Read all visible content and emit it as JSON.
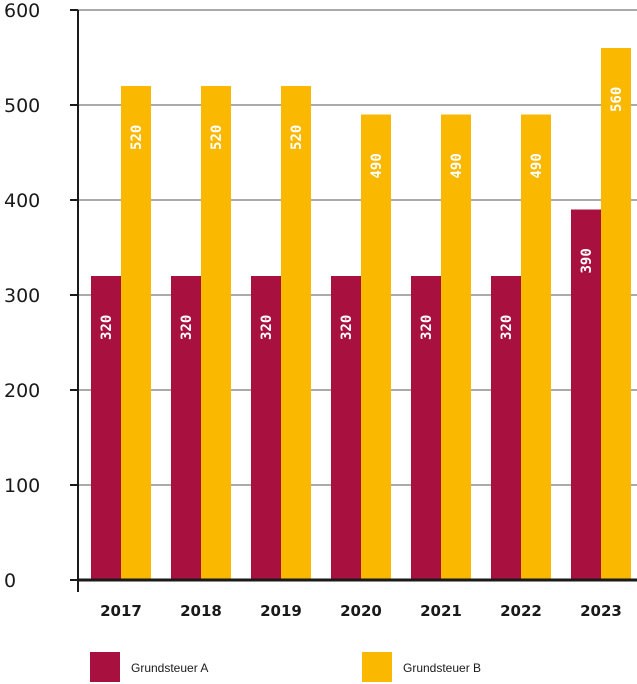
{
  "chart_data": {
    "type": "bar",
    "title": "",
    "xlabel": "",
    "ylabel": "",
    "categories": [
      "2017",
      "2018",
      "2019",
      "2020",
      "2021",
      "2022",
      "2023"
    ],
    "series": [
      {
        "name": "Grundsteuer A",
        "color": "#a8103f",
        "values": [
          320,
          320,
          320,
          320,
          320,
          320,
          390
        ],
        "labels": [
          "320",
          "320",
          "320",
          "320",
          "320",
          "320",
          "390"
        ]
      },
      {
        "name": "Grundsteuer B",
        "color": "#fbb800",
        "values": [
          520,
          520,
          520,
          490,
          490,
          490,
          560
        ],
        "labels": [
          "520",
          "520",
          "520",
          "490",
          "490",
          "490",
          "560"
        ]
      }
    ],
    "yticks": [
      0,
      100,
      200,
      300,
      400,
      500,
      600
    ],
    "ytick_labels": [
      "0",
      "100",
      "200",
      "300",
      "400",
      "500",
      "600"
    ],
    "ylim": [
      0,
      600
    ],
    "grid": true,
    "legend_position": "bottom"
  }
}
